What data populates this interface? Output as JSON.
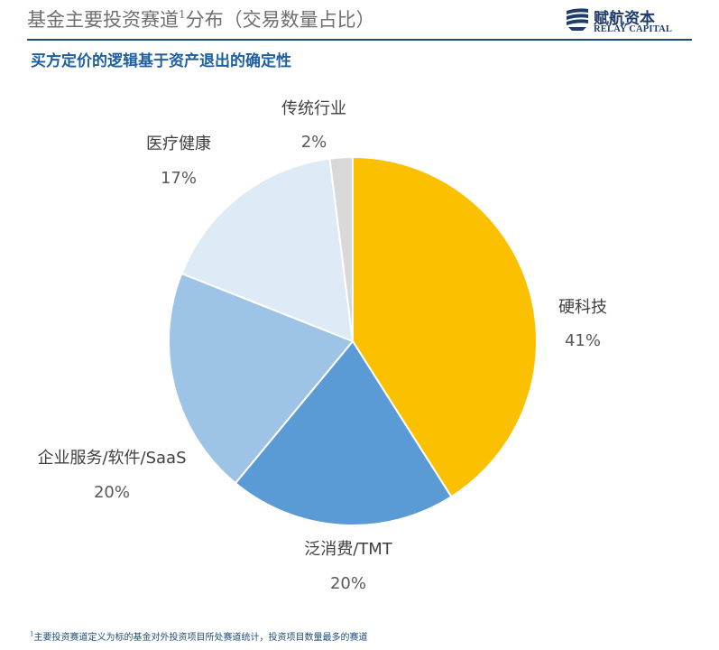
{
  "header": {
    "title": "基金主要投资赛道",
    "title_sup": "1",
    "title_suffix": "分布（交易数量占比）",
    "subtitle": "买方定价的逻辑基于资产退出的确定性"
  },
  "logo": {
    "cn": "赋航资本",
    "en": "RELAY CAPITAL"
  },
  "chart_data": {
    "type": "pie",
    "slices": [
      {
        "label": "硬科技",
        "value": 41,
        "value_label": "41%",
        "color": "#fbc000"
      },
      {
        "label": "泛消费/TMT",
        "value": 20,
        "value_label": "20%",
        "color": "#5b9bd5"
      },
      {
        "label": "企业服务/软件/SaaS",
        "value": 20,
        "value_label": "20%",
        "color": "#9dc3e6"
      },
      {
        "label": "医疗健康",
        "value": 17,
        "value_label": "17%",
        "color": "#deebf7"
      },
      {
        "label": "传统行业",
        "value": 2,
        "value_label": "2%",
        "color": "#d9d9d9"
      }
    ]
  },
  "footnote": {
    "sup": "1",
    "text": "主要投资赛道定义为标的基金对外投资项目所处赛道统计，投资项目数量最多的赛道"
  }
}
